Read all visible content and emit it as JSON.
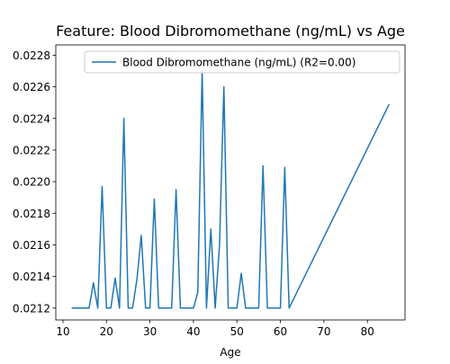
{
  "chart_data": {
    "type": "line",
    "title": "Feature: Blood Dibromomethane (ng/mL) vs Age",
    "xlabel": "Age",
    "ylabel": "",
    "xlim": [
      8.35,
      88.65
    ],
    "ylim": [
      0.021125,
      0.022865
    ],
    "xticks": [
      10,
      20,
      30,
      40,
      50,
      60,
      70,
      80
    ],
    "yticks": [
      0.0212,
      0.0214,
      0.0216,
      0.0218,
      0.022,
      0.0222,
      0.0224,
      0.0226,
      0.0228
    ],
    "grid": false,
    "legend_position": "top-right",
    "series": [
      {
        "name": "Blood Dibromomethane (ng/mL) (R2=0.00)",
        "color": "#1f77b4",
        "x": [
          12,
          13,
          14,
          15,
          16,
          17,
          18,
          19,
          20,
          21,
          22,
          23,
          24,
          25,
          26,
          27,
          28,
          29,
          30,
          31,
          32,
          33,
          34,
          35,
          36,
          37,
          38,
          39,
          40,
          41,
          42,
          43,
          44,
          45,
          46,
          47,
          48,
          49,
          50,
          51,
          52,
          53,
          54,
          55,
          56,
          57,
          58,
          59,
          60,
          61,
          62,
          85
        ],
        "y": [
          0.0212,
          0.0212,
          0.0212,
          0.0212,
          0.0212,
          0.02136,
          0.0212,
          0.02197,
          0.0212,
          0.0212,
          0.02139,
          0.0212,
          0.0224,
          0.0212,
          0.0212,
          0.02138,
          0.02166,
          0.0212,
          0.0212,
          0.02189,
          0.0212,
          0.0212,
          0.0212,
          0.0212,
          0.02195,
          0.0212,
          0.0212,
          0.0212,
          0.0212,
          0.0213,
          0.0227,
          0.0212,
          0.0217,
          0.0212,
          0.0216,
          0.0226,
          0.0212,
          0.0212,
          0.0212,
          0.02142,
          0.0212,
          0.0212,
          0.0212,
          0.0212,
          0.0221,
          0.0212,
          0.0212,
          0.0212,
          0.0212,
          0.02209,
          0.0212,
          0.02249
        ]
      }
    ]
  }
}
